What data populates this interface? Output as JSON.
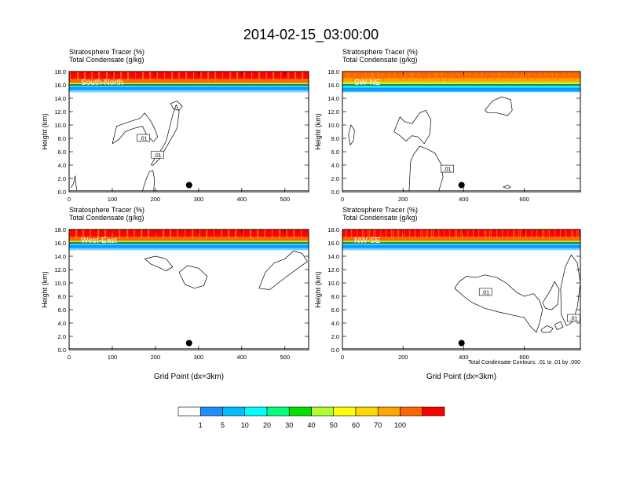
{
  "figure": {
    "title": "2014-02-15_03:00:00",
    "footnote": "Total Condensate Contours: .01 to .01 by .000"
  },
  "colorbar": {
    "colors": [
      "#ffffff",
      "#1e90ff",
      "#00bfff",
      "#00ffff",
      "#00ff7f",
      "#00e000",
      "#adff2f",
      "#ffff00",
      "#ffd700",
      "#ffa500",
      "#ff6600",
      "#ff0000"
    ],
    "labels": [
      "1",
      "5",
      "10",
      "20",
      "30",
      "40",
      "50",
      "60",
      "70",
      "100"
    ]
  },
  "chart_data": [
    {
      "type": "heatmap",
      "title": "South-North",
      "header_line1": "Stratosphere Tracer   (%)",
      "header_line2": "Total Condensate   (g/kg)",
      "ylabel": "Height (km)",
      "xlabel": "",
      "xlim": [
        0,
        555
      ],
      "ylim": [
        0,
        18
      ],
      "xticks": [
        "0",
        "100",
        "200",
        "300",
        "400",
        "500"
      ],
      "xtick_values": [
        0,
        100,
        200,
        300,
        400,
        500
      ],
      "yticks": [
        "0.0",
        "2.0",
        "4.0",
        "6.0",
        "8.0",
        "10.0",
        "12.0",
        "14.0",
        "16.0",
        "18.0"
      ],
      "tracer_bands": [
        {
          "from": 15.2,
          "to": 15.7,
          "color": "#1e90ff"
        },
        {
          "from": 15.7,
          "to": 16.0,
          "color": "#00ffff"
        },
        {
          "from": 16.0,
          "to": 16.3,
          "color": "#adff2f"
        },
        {
          "from": 16.3,
          "to": 16.9,
          "color": "#ff6600"
        },
        {
          "from": 16.9,
          "to": 18.0,
          "color": "#ff0000"
        }
      ],
      "contour_labels": [
        {
          "text": ".01",
          "x": 172,
          "y": 8.0
        },
        {
          "text": ".01",
          "x": 205,
          "y": 5.5
        }
      ],
      "point": {
        "x": 278,
        "y": 1.0
      }
    },
    {
      "type": "heatmap",
      "title": "SW-NE",
      "header_line1": "Stratosphere Tracer   (%)",
      "header_line2": "Total Condensate   (g/kg)",
      "ylabel": "Height (km)",
      "xlabel": "",
      "xlim": [
        0,
        785
      ],
      "ylim": [
        0,
        18
      ],
      "xticks": [
        "0",
        "200",
        "400",
        "600"
      ],
      "xtick_values": [
        0,
        200,
        400,
        600
      ],
      "yticks": [
        "0.0",
        "2.0",
        "4.0",
        "6.0",
        "8.0",
        "10.0",
        "12.0",
        "14.0",
        "16.0",
        "18.0"
      ],
      "tracer_bands": [
        {
          "from": 15.0,
          "to": 15.6,
          "color": "#1e90ff"
        },
        {
          "from": 15.6,
          "to": 16.0,
          "color": "#00ffff"
        },
        {
          "from": 16.0,
          "to": 16.4,
          "color": "#adff2f"
        },
        {
          "from": 16.4,
          "to": 17.0,
          "color": "#ffa500"
        },
        {
          "from": 17.0,
          "to": 18.0,
          "color": "#ff6600"
        }
      ],
      "contour_labels": [
        {
          "text": ".01",
          "x": 346,
          "y": 3.4
        }
      ],
      "point": {
        "x": 393,
        "y": 1.0
      }
    },
    {
      "type": "heatmap",
      "title": "West-East",
      "header_line1": "Stratosphere Tracer   (%)",
      "header_line2": "Total Condensate   (g/kg)",
      "ylabel": "Height (km)",
      "xlabel": "Grid Point (dx=3km)",
      "xlim": [
        0,
        555
      ],
      "ylim": [
        0,
        18
      ],
      "xticks": [
        "0",
        "100",
        "200",
        "300",
        "400",
        "500"
      ],
      "xtick_values": [
        0,
        100,
        200,
        300,
        400,
        500
      ],
      "yticks": [
        "0.0",
        "2.0",
        "4.0",
        "6.0",
        "8.0",
        "10.0",
        "12.0",
        "14.0",
        "16.0",
        "18.0"
      ],
      "tracer_bands": [
        {
          "from": 15.2,
          "to": 15.7,
          "color": "#1e90ff"
        },
        {
          "from": 15.7,
          "to": 16.0,
          "color": "#00ffff"
        },
        {
          "from": 16.0,
          "to": 16.3,
          "color": "#adff2f"
        },
        {
          "from": 16.3,
          "to": 16.9,
          "color": "#ff6600"
        },
        {
          "from": 16.9,
          "to": 18.0,
          "color": "#ff0000"
        }
      ],
      "contour_labels": [],
      "point": {
        "x": 278,
        "y": 1.0
      }
    },
    {
      "type": "heatmap",
      "title": "NW-SE",
      "header_line1": "Stratosphere Tracer   (%)",
      "header_line2": "Total Condensate   (g/kg)",
      "ylabel": "Height (km)",
      "xlabel": "Grid Point (dx=3km)",
      "xlim": [
        0,
        785
      ],
      "ylim": [
        0,
        18
      ],
      "xticks": [
        "0",
        "200",
        "400",
        "600"
      ],
      "xtick_values": [
        0,
        200,
        400,
        600
      ],
      "yticks": [
        "0.0",
        "2.0",
        "4.0",
        "6.0",
        "8.0",
        "10.0",
        "12.0",
        "14.0",
        "16.0",
        "18.0"
      ],
      "tracer_bands": [
        {
          "from": 15.2,
          "to": 15.7,
          "color": "#1e90ff"
        },
        {
          "from": 15.7,
          "to": 16.0,
          "color": "#00ffff"
        },
        {
          "from": 16.0,
          "to": 16.3,
          "color": "#adff2f"
        },
        {
          "from": 16.3,
          "to": 16.9,
          "color": "#ff6600"
        },
        {
          "from": 16.9,
          "to": 18.0,
          "color": "#ff0000"
        }
      ],
      "contour_labels": [
        {
          "text": ".01",
          "x": 472,
          "y": 8.6
        },
        {
          "text": ".01",
          "x": 763,
          "y": 4.7
        }
      ],
      "point": {
        "x": 393,
        "y": 1.0
      }
    }
  ]
}
